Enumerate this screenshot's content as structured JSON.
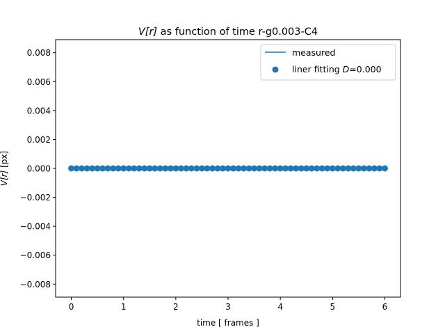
{
  "chart_data": {
    "type": "scatter",
    "title_prefix": "V[r]",
    "title_suffix": " as function of time r-g0.003-C4",
    "xlabel": "time [ frames ]",
    "ylabel_prefix": "V[r]",
    "ylabel_suffix": " [px]",
    "xlim": [
      -0.3,
      6.3
    ],
    "ylim": [
      -0.0089,
      0.0089
    ],
    "x_ticks": [
      0,
      1,
      2,
      3,
      4,
      5,
      6
    ],
    "y_ticks": [
      -0.008,
      -0.006,
      -0.004,
      -0.002,
      0.0,
      0.002,
      0.004,
      0.006,
      0.008
    ],
    "y_tick_labels": [
      "−0.008",
      "−0.006",
      "−0.004",
      "−0.002",
      "0.000",
      "0.002",
      "0.004",
      "0.006",
      "0.008"
    ],
    "series": [
      {
        "name": "measured",
        "kind": "line",
        "color": "#1f77b4",
        "x": [
          0.0,
          0.1,
          0.2,
          0.3,
          0.4,
          0.5,
          0.6,
          0.7,
          0.8,
          0.9,
          1.0,
          1.1,
          1.2,
          1.3,
          1.4,
          1.5,
          1.6,
          1.7,
          1.8,
          1.9,
          2.0,
          2.1,
          2.2,
          2.3,
          2.4,
          2.5,
          2.6,
          2.7,
          2.8,
          2.9,
          3.0,
          3.1,
          3.2,
          3.3,
          3.4,
          3.5,
          3.6,
          3.7,
          3.8,
          3.9,
          4.0,
          4.1,
          4.2,
          4.3,
          4.4,
          4.5,
          4.6,
          4.7,
          4.8,
          4.9,
          5.0,
          5.1,
          5.2,
          5.3,
          5.4,
          5.5,
          5.6,
          5.7,
          5.8,
          5.9,
          6.0
        ],
        "y_constant": 0.0
      },
      {
        "name_prefix": "liner fitting ",
        "name_var": "D",
        "name_suffix": "=0.000",
        "kind": "scatter",
        "color": "#1f77b4",
        "x": [
          0.0,
          0.1,
          0.2,
          0.3,
          0.4,
          0.5,
          0.6,
          0.7,
          0.8,
          0.9,
          1.0,
          1.1,
          1.2,
          1.3,
          1.4,
          1.5,
          1.6,
          1.7,
          1.8,
          1.9,
          2.0,
          2.1,
          2.2,
          2.3,
          2.4,
          2.5,
          2.6,
          2.7,
          2.8,
          2.9,
          3.0,
          3.1,
          3.2,
          3.3,
          3.4,
          3.5,
          3.6,
          3.7,
          3.8,
          3.9,
          4.0,
          4.1,
          4.2,
          4.3,
          4.4,
          4.5,
          4.6,
          4.7,
          4.8,
          4.9,
          5.0,
          5.1,
          5.2,
          5.3,
          5.4,
          5.5,
          5.6,
          5.7,
          5.8,
          5.9,
          6.0
        ],
        "y_constant": 0.0
      }
    ],
    "legend_position": "top-right",
    "grid": false
  }
}
